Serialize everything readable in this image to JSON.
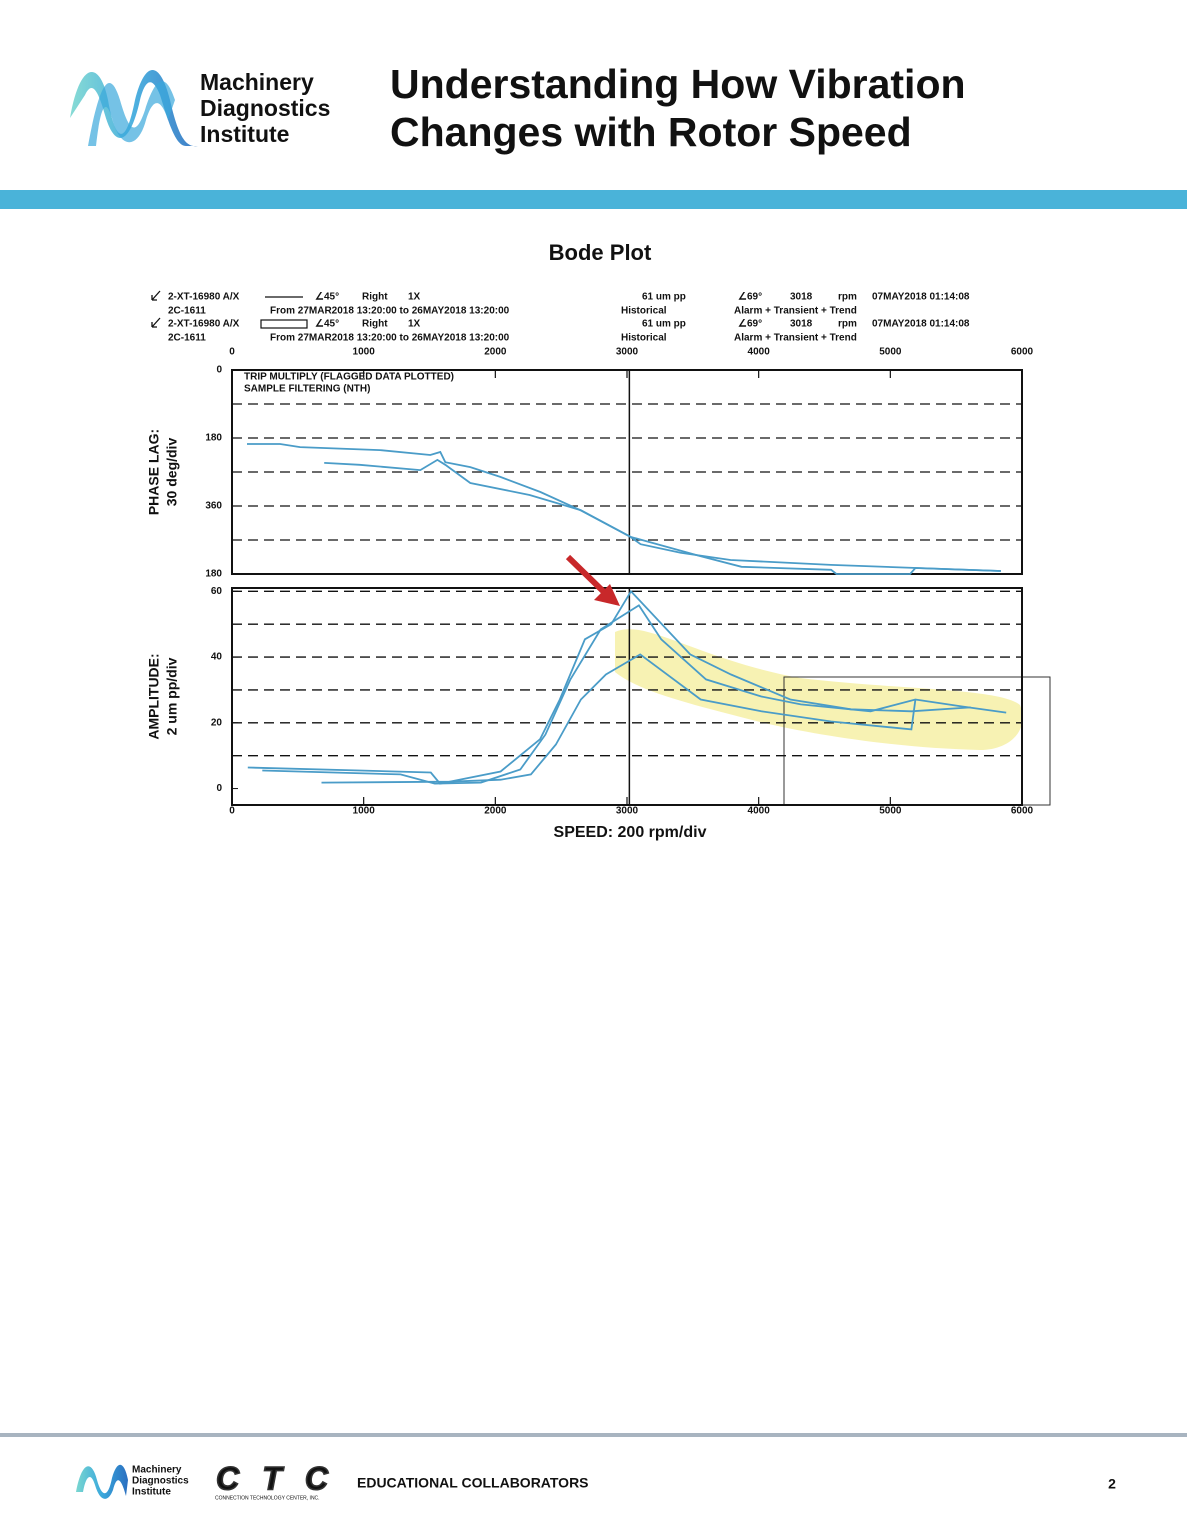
{
  "header": {
    "logo_text": [
      "Machinery",
      "Diagnostics",
      "Institute"
    ],
    "title": [
      "Understanding How Vibration",
      "Changes with Rotor Speed"
    ]
  },
  "plot_title": "Bode Plot",
  "legend": [
    {
      "tag": "2-XT-16980 A/X",
      "angle": "∠45°",
      "orientation": "Right",
      "order": "1X",
      "amplitude": "61 um pp",
      "phase": "∠69°",
      "speed": "3018",
      "speed_unit": "rpm",
      "timestamp": "07MAY2018 01:14:08",
      "machine": "2C-1611",
      "range": "From 27MAR2018 13:20:00 to 26MAY2018 13:20:00",
      "mode": "Historical",
      "trigger": "Alarm + Transient + Trend"
    },
    {
      "tag": "2-XT-16980 A/X",
      "angle": "∠45°",
      "orientation": "Right",
      "order": "1X",
      "amplitude": "61 um pp",
      "phase": "∠69°",
      "speed": "3018",
      "speed_unit": "rpm",
      "timestamp": "07MAY2018 01:14:08",
      "machine": "2C-1611",
      "range": "From 27MAR2018 13:20:00 to 26MAY2018 13:20:00",
      "mode": "Historical",
      "trigger": "Alarm + Transient + Trend"
    }
  ],
  "chart_data": [
    {
      "type": "line",
      "ylabel": [
        "PHASE LAG:",
        "30 deg/div"
      ],
      "notes": [
        "TRIP MULTIPLY (FLAGGED DATA PLOTTED)",
        "SAMPLE FILTERING (NTH)"
      ],
      "xlim": [
        0,
        6000
      ],
      "xticks": [
        0,
        1000,
        2000,
        3000,
        4000,
        5000,
        6000
      ],
      "xaxis_position": "top",
      "ylim": [
        0,
        540
      ],
      "y_inverted": true,
      "yticks": [
        0,
        180,
        360,
        {
          "value": 540,
          "label": "180"
        }
      ],
      "grid_lines": [
        90,
        180,
        270,
        360,
        450
      ],
      "cursor_x": 3018,
      "series": [
        {
          "color": "#4a9cc8",
          "x": [
            114,
            365,
            517,
            1125,
            1506,
            1582,
            1620,
            1810,
            2038,
            2342,
            2646,
            3027,
            3103,
            3407,
            3787,
            4548,
            5840
          ],
          "values": [
            196,
            196,
            204,
            212,
            225,
            217,
            244,
            257,
            283,
            323,
            371,
            442,
            461,
            484,
            503,
            516,
            532
          ]
        },
        {
          "color": "#4a9cc8",
          "x": [
            700,
            970,
            1430,
            1560,
            1620,
            1810,
            2260,
            2650,
            3030,
            3550,
            3870,
            4550,
            4590,
            5150,
            5190,
            5840
          ],
          "values": [
            246,
            251,
            265,
            238,
            251,
            299,
            331,
            371,
            442,
            492,
            521,
            529,
            540,
            540,
            524,
            532
          ]
        }
      ]
    },
    {
      "type": "line",
      "ylabel": [
        "AMPLITUDE:",
        "2 um pp/div"
      ],
      "xlabel": "SPEED: 200 rpm/div",
      "xlim": [
        0,
        6000
      ],
      "xticks": [
        0,
        1000,
        2000,
        3000,
        4000,
        5000,
        6000
      ],
      "xaxis_position": "bottom",
      "ylim": [
        -5,
        61
      ],
      "yticks": [
        0,
        20,
        40,
        60
      ],
      "grid_lines": [
        10,
        20,
        30,
        40,
        50,
        60
      ],
      "cursor_x": 3018,
      "series": [
        {
          "color": "#4a9cc8",
          "x": [
            120,
            970,
            1510,
            1580,
            2040,
            2340,
            2490,
            2680,
            2880,
            3030,
            3480,
            3790,
            4240,
            4700,
            5160,
            5610
          ],
          "values": [
            6.4,
            5.5,
            4.9,
            1.5,
            5.2,
            15,
            27.1,
            45.4,
            50,
            60,
            40.8,
            34.7,
            27.1,
            24.1,
            23.5,
            24.7
          ]
        },
        {
          "color": "#4a9cc8",
          "x": [
            230,
            1280,
            1540,
            1890,
            2190,
            2380,
            2570,
            2800,
            3090,
            3260,
            3600,
            4020,
            4320,
            4850,
            5190,
            5540,
            5880
          ],
          "values": [
            5.5,
            4.3,
            1.5,
            1.8,
            5.8,
            16.4,
            33.2,
            48.4,
            55.7,
            45.4,
            33.2,
            28,
            25.6,
            23.5,
            27.1,
            25,
            23.1
          ]
        },
        {
          "color": "#4a9cc8",
          "x": [
            680,
            1660,
            2040,
            2270,
            2460,
            2650,
            2840,
            3100,
            3560,
            4020,
            4550,
            5160,
            5190
          ],
          "values": [
            1.8,
            2.1,
            2.7,
            4.3,
            13.4,
            27.1,
            34.7,
            40.8,
            27.1,
            23.5,
            20.4,
            18,
            27.1
          ]
        }
      ]
    }
  ],
  "footer": {
    "logo_text": [
      "Machinery",
      "Diagnostics",
      "Institute"
    ],
    "ctc_logo": "CTC",
    "ctc_name": "CONNECTION TECHNOLOGY CENTER, INC.",
    "label": "EDUCATIONAL COLLABORATORS",
    "page": "2"
  }
}
